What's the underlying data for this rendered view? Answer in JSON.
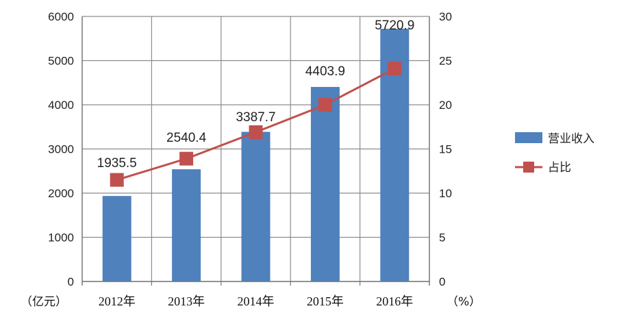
{
  "chart_data": {
    "type": "bar",
    "categories": [
      "2012年",
      "2013年",
      "2014年",
      "2015年",
      "2016年"
    ],
    "series": [
      {
        "name": "营业收入",
        "type": "bar",
        "axis": "left",
        "values": [
          1935.5,
          2540.4,
          3387.7,
          4403.9,
          5720.9
        ],
        "labels": [
          "1935.5",
          "2540.4",
          "3387.7",
          "4403.9",
          "5720.9"
        ],
        "color": "#4f81bd"
      },
      {
        "name": "占比",
        "type": "line",
        "axis": "right",
        "values": [
          11.5,
          13.9,
          16.9,
          20.0,
          24.1
        ],
        "color": "#c0504d"
      }
    ],
    "y_left": {
      "range": [
        0,
        6000
      ],
      "ticks": [
        "0",
        "1000",
        "2000",
        "3000",
        "4000",
        "5000",
        "6000"
      ],
      "unit": "（亿元）"
    },
    "y_right": {
      "range": [
        0,
        30
      ],
      "ticks": [
        "0",
        "5",
        "10",
        "15",
        "20",
        "25",
        "30"
      ],
      "unit": "（%）"
    },
    "grid": true,
    "legend": "right"
  }
}
